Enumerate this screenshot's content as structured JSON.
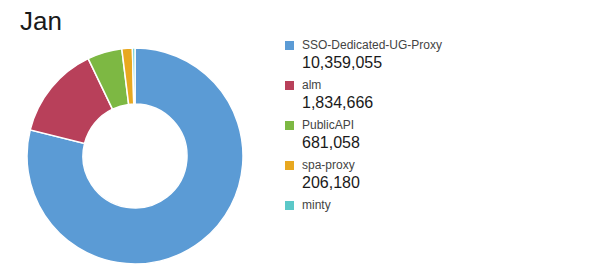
{
  "chart_data": {
    "type": "pie",
    "title": "Jan",
    "categories": [
      "SSO-Dedicated-UG-Proxy",
      "alm",
      "PublicAPI",
      "spa-proxy",
      "minty"
    ],
    "values": [
      10359055,
      1834666,
      681058,
      206180,
      50000
    ],
    "value_labels": [
      "10,359,055",
      "1,834,666",
      "681,058",
      "206,180",
      null
    ],
    "colors": [
      "#5b9bd5",
      "#b8405a",
      "#7db843",
      "#e8a820",
      "#5bc8c8"
    ],
    "legend": "right"
  }
}
